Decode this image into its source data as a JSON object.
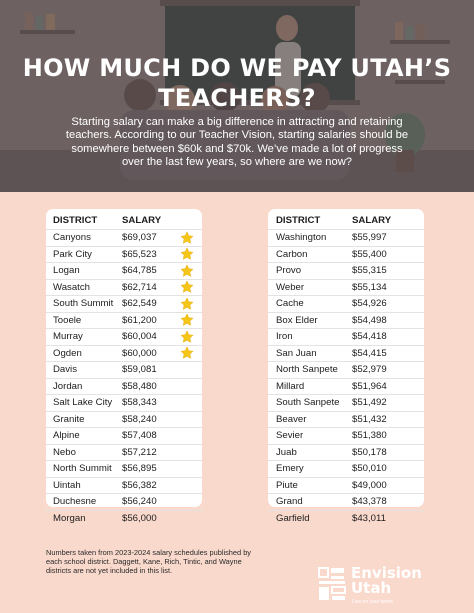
{
  "header": {
    "title": "HOW MUCH DO WE PAY UTAH’S TEACHERS?",
    "subtitle": "Starting salary can make a big difference in attracting and retaining teachers. According to our Teacher Vision, starting salaries should be somewhere between $60k and $70k. We’ve made a lot of progress over the last few years, so where are we now?"
  },
  "left_table": {
    "col_district": "DISTRICT",
    "col_salary": "SALARY",
    "rows": [
      {
        "district": "Canyons",
        "salary": "$69,037",
        "star": true
      },
      {
        "district": "Park City",
        "salary": "$65,523",
        "star": true
      },
      {
        "district": "Logan",
        "salary": "$64,785",
        "star": true
      },
      {
        "district": "Wasatch",
        "salary": "$62,714",
        "star": true
      },
      {
        "district": "South Summit",
        "salary": "$62,549",
        "star": true
      },
      {
        "district": "Tooele",
        "salary": "$61,200",
        "star": true
      },
      {
        "district": "Murray",
        "salary": "$60,004",
        "star": true
      },
      {
        "district": "Ogden",
        "salary": "$60,000",
        "star": true
      },
      {
        "district": "Davis",
        "salary": "$59,081",
        "star": false
      },
      {
        "district": "Jordan",
        "salary": "$58,480",
        "star": false
      },
      {
        "district": "Salt Lake City",
        "salary": "$58,343",
        "star": false
      },
      {
        "district": "Granite",
        "salary": "$58,240",
        "star": false
      },
      {
        "district": "Alpine",
        "salary": "$57,408",
        "star": false
      },
      {
        "district": "Nebo",
        "salary": "$57,212",
        "star": false
      },
      {
        "district": "North Summit",
        "salary": "$56,895",
        "star": false
      },
      {
        "district": "Uintah",
        "salary": "$56,382",
        "star": false
      },
      {
        "district": "Duchesne",
        "salary": "$56,240",
        "star": false
      },
      {
        "district": "Morgan",
        "salary": "$56,000",
        "star": false
      }
    ]
  },
  "right_table": {
    "col_district": "DISTRICT",
    "col_salary": "SALARY",
    "rows": [
      {
        "district": "Washington",
        "salary": "$55,997"
      },
      {
        "district": "Carbon",
        "salary": "$55,400"
      },
      {
        "district": "Provo",
        "salary": "$55,315"
      },
      {
        "district": "Weber",
        "salary": "$55,134"
      },
      {
        "district": "Cache",
        "salary": "$54,926"
      },
      {
        "district": "Box Elder",
        "salary": "$54,498"
      },
      {
        "district": "Iron",
        "salary": "$54,418"
      },
      {
        "district": "San Juan",
        "salary": "$54,415"
      },
      {
        "district": "North Sanpete",
        "salary": "$52,979"
      },
      {
        "district": "Millard",
        "salary": "$51,964"
      },
      {
        "district": "South Sanpete",
        "salary": "$51,492"
      },
      {
        "district": "Beaver",
        "salary": "$51,432"
      },
      {
        "district": "Sevier",
        "salary": "$51,380"
      },
      {
        "district": "Juab",
        "salary": "$50,178"
      },
      {
        "district": "Emery",
        "salary": "$50,010"
      },
      {
        "district": "Piute",
        "salary": "$49,000"
      },
      {
        "district": "Grand",
        "salary": "$43,378"
      },
      {
        "district": "Garfield",
        "salary": "$43,011"
      }
    ]
  },
  "footnote": "Numbers taken from 2023-2024 salary schedules published by each school district. Daggett, Kane, Rich, Tintic, and Wayne districts are not yet included in this list.",
  "logo": {
    "wordmark": "Envision\nUtah",
    "tagline": "Live on your terms",
    "icon": "envision-utah-logo-mark"
  },
  "icons": {
    "star": "star-icon"
  },
  "colors": {
    "background": "#f9d9cc",
    "star": "#f5c518",
    "hero_overlay": "#463e42"
  }
}
